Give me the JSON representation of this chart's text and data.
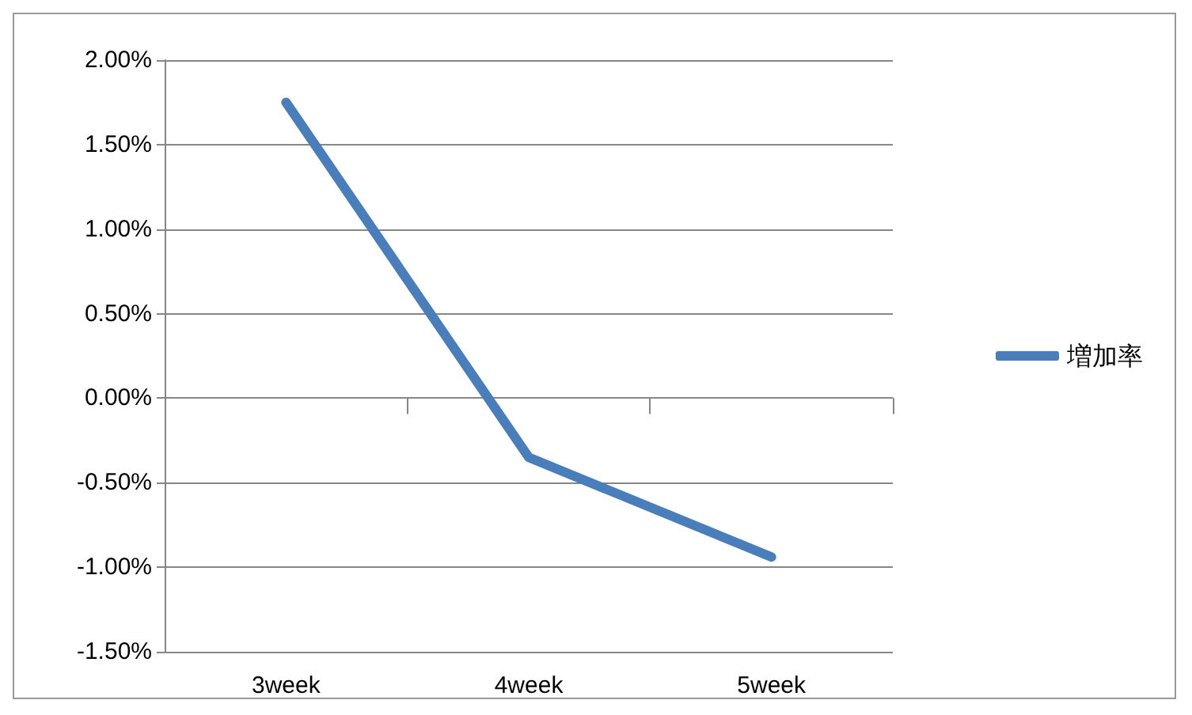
{
  "chart_data": {
    "type": "line",
    "categories": [
      "3week",
      "4week",
      "5week"
    ],
    "series": [
      {
        "name": "増加率",
        "color": "#4a7ebb",
        "values": [
          1.75,
          -0.35,
          -0.94
        ]
      }
    ],
    "ylim": [
      -1.5,
      2
    ],
    "yticks": [
      {
        "value": -1.5,
        "label": "-1.50%"
      },
      {
        "value": -1,
        "label": "-1.00%"
      },
      {
        "value": -0.5,
        "label": "-0.50%"
      },
      {
        "value": 0,
        "label": "0.00%"
      },
      {
        "value": 0.5,
        "label": "0.50%"
      },
      {
        "value": 1,
        "label": "1.00%"
      },
      {
        "value": 1.5,
        "label": "1.50%"
      },
      {
        "value": 2,
        "label": "2.00%"
      }
    ],
    "grid": "y",
    "legend": "right",
    "marker": "none",
    "line_style": "solid"
  }
}
